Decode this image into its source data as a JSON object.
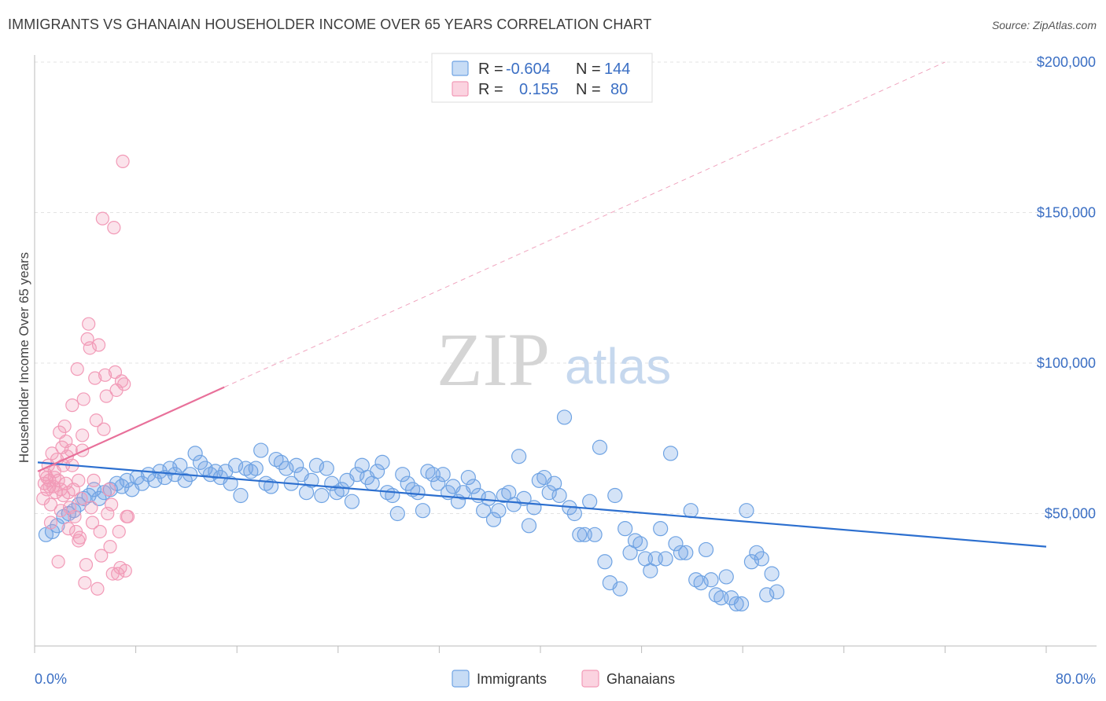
{
  "title": "IMMIGRANTS VS GHANAIAN HOUSEHOLDER INCOME OVER 65 YEARS CORRELATION CHART",
  "source": "Source: ZipAtlas.com",
  "watermark": {
    "zip": "ZIP",
    "atlas": "atlas"
  },
  "colors": {
    "immigrants": "#6fa3e3",
    "immigrants_line": "#2c6fcf",
    "ghanaians": "#f29ab7",
    "ghanaians_line": "#e8709a",
    "accent_text": "#3b6fc4"
  },
  "legend": {
    "rows": [
      {
        "r_label": "R =",
        "r_value": "-0.604",
        "n_label": "N =",
        "n_value": "144"
      },
      {
        "r_label": "R =",
        "r_value": "0.155",
        "n_label": "N =",
        "n_value": "80"
      }
    ]
  },
  "chart_data": {
    "type": "scatter",
    "xlabel": "",
    "ylabel": "Householder Income Over 65 years",
    "xlim": [
      0,
      80
    ],
    "ylim": [
      0,
      210000
    ],
    "x_tick_labels": [
      "0.0%",
      "80.0%"
    ],
    "y_ticks": [
      50000,
      100000,
      150000,
      200000
    ],
    "y_tick_labels": [
      "$50,000",
      "$100,000",
      "$150,000",
      "$200,000"
    ],
    "grid": true,
    "legend_position": "top-center",
    "series": [
      {
        "name": "Immigrants",
        "trend": {
          "x1": 0.0,
          "y1": 67000,
          "x2": 80.0,
          "y2": 39000,
          "dashed_extension": false
        },
        "points": [
          [
            0.4,
            43000
          ],
          [
            0.9,
            44000
          ],
          [
            1.3,
            46000
          ],
          [
            1.8,
            49000
          ],
          [
            2.2,
            50000
          ],
          [
            2.6,
            51000
          ],
          [
            3.0,
            53000
          ],
          [
            3.4,
            55000
          ],
          [
            3.8,
            56000
          ],
          [
            4.2,
            58000
          ],
          [
            4.6,
            55000
          ],
          [
            5.0,
            57000
          ],
          [
            5.5,
            58000
          ],
          [
            6.0,
            60000
          ],
          [
            6.4,
            59000
          ],
          [
            6.8,
            61000
          ],
          [
            7.2,
            58000
          ],
          [
            7.6,
            62000
          ],
          [
            8.0,
            60000
          ],
          [
            8.5,
            63000
          ],
          [
            9.0,
            61000
          ],
          [
            9.4,
            64000
          ],
          [
            9.8,
            62000
          ],
          [
            10.2,
            65000
          ],
          [
            10.6,
            63000
          ],
          [
            11.0,
            66000
          ],
          [
            11.4,
            61000
          ],
          [
            11.8,
            63000
          ],
          [
            12.2,
            70000
          ],
          [
            12.6,
            67000
          ],
          [
            13.0,
            65000
          ],
          [
            13.4,
            63000
          ],
          [
            13.8,
            64000
          ],
          [
            14.2,
            62000
          ],
          [
            14.6,
            64000
          ],
          [
            15.0,
            60000
          ],
          [
            15.4,
            66000
          ],
          [
            15.8,
            56000
          ],
          [
            16.2,
            65000
          ],
          [
            16.6,
            64000
          ],
          [
            17.0,
            65000
          ],
          [
            17.4,
            71000
          ],
          [
            17.8,
            60000
          ],
          [
            18.2,
            59000
          ],
          [
            18.6,
            68000
          ],
          [
            19.0,
            67000
          ],
          [
            19.4,
            65000
          ],
          [
            19.8,
            60000
          ],
          [
            20.2,
            66000
          ],
          [
            20.6,
            63000
          ],
          [
            21.0,
            57000
          ],
          [
            21.4,
            61000
          ],
          [
            21.8,
            66000
          ],
          [
            22.2,
            56000
          ],
          [
            22.6,
            65000
          ],
          [
            23.0,
            60000
          ],
          [
            23.4,
            57000
          ],
          [
            23.8,
            58000
          ],
          [
            24.2,
            61000
          ],
          [
            24.6,
            54000
          ],
          [
            25.0,
            63000
          ],
          [
            25.4,
            66000
          ],
          [
            25.8,
            62000
          ],
          [
            26.2,
            60000
          ],
          [
            26.6,
            64000
          ],
          [
            27.0,
            67000
          ],
          [
            27.4,
            57000
          ],
          [
            27.8,
            56000
          ],
          [
            28.2,
            50000
          ],
          [
            28.6,
            63000
          ],
          [
            29.0,
            60000
          ],
          [
            29.4,
            58000
          ],
          [
            29.8,
            57000
          ],
          [
            30.2,
            51000
          ],
          [
            30.6,
            64000
          ],
          [
            31.0,
            63000
          ],
          [
            31.4,
            60000
          ],
          [
            31.8,
            63000
          ],
          [
            32.2,
            57000
          ],
          [
            32.6,
            59000
          ],
          [
            33.0,
            54000
          ],
          [
            33.4,
            57000
          ],
          [
            33.8,
            62000
          ],
          [
            34.2,
            59000
          ],
          [
            34.6,
            56000
          ],
          [
            35.0,
            51000
          ],
          [
            35.4,
            55000
          ],
          [
            35.8,
            48000
          ],
          [
            36.2,
            51000
          ],
          [
            36.6,
            56000
          ],
          [
            37.0,
            57000
          ],
          [
            37.4,
            53000
          ],
          [
            37.8,
            69000
          ],
          [
            38.2,
            55000
          ],
          [
            38.6,
            46000
          ],
          [
            39.0,
            52000
          ],
          [
            39.4,
            61000
          ],
          [
            39.8,
            62000
          ],
          [
            40.2,
            57000
          ],
          [
            40.6,
            60000
          ],
          [
            41.0,
            56000
          ],
          [
            41.4,
            82000
          ],
          [
            41.8,
            52000
          ],
          [
            42.2,
            50000
          ],
          [
            42.6,
            43000
          ],
          [
            43.0,
            43000
          ],
          [
            43.4,
            54000
          ],
          [
            43.8,
            43000
          ],
          [
            44.2,
            72000
          ],
          [
            44.6,
            34000
          ],
          [
            45.0,
            27000
          ],
          [
            45.4,
            56000
          ],
          [
            45.8,
            25000
          ],
          [
            46.2,
            45000
          ],
          [
            46.6,
            37000
          ],
          [
            47.0,
            41000
          ],
          [
            47.4,
            40000
          ],
          [
            47.8,
            35000
          ],
          [
            48.2,
            31000
          ],
          [
            48.6,
            35000
          ],
          [
            49.0,
            45000
          ],
          [
            49.4,
            35000
          ],
          [
            49.8,
            70000
          ],
          [
            50.2,
            40000
          ],
          [
            50.6,
            37000
          ],
          [
            51.0,
            37000
          ],
          [
            51.4,
            51000
          ],
          [
            51.8,
            28000
          ],
          [
            52.2,
            27000
          ],
          [
            52.6,
            38000
          ],
          [
            53.0,
            28000
          ],
          [
            53.4,
            23000
          ],
          [
            53.8,
            22000
          ],
          [
            54.2,
            29000
          ],
          [
            54.6,
            22000
          ],
          [
            55.0,
            20000
          ],
          [
            55.4,
            20000
          ],
          [
            55.8,
            51000
          ],
          [
            56.2,
            34000
          ],
          [
            56.6,
            37000
          ],
          [
            57.0,
            35000
          ],
          [
            57.4,
            23000
          ],
          [
            57.8,
            30000
          ],
          [
            58.2,
            24000
          ]
        ]
      },
      {
        "name": "Ghanaians",
        "trend": {
          "x1": 0.0,
          "y1": 64000,
          "x2": 15.0,
          "y2": 92000,
          "dashed_extension": true,
          "x3": 72.0,
          "y3": 200000
        },
        "points": [
          [
            0.3,
            55000
          ],
          [
            0.4,
            60000
          ],
          [
            0.5,
            63000
          ],
          [
            0.6,
            58000
          ],
          [
            0.7,
            66000
          ],
          [
            0.8,
            61000
          ],
          [
            0.9,
            53000
          ],
          [
            1.0,
            70000
          ],
          [
            1.1,
            59000
          ],
          [
            1.2,
            64000
          ],
          [
            1.3,
            57000
          ],
          [
            1.4,
            68000
          ],
          [
            1.5,
            61000
          ],
          [
            1.6,
            77000
          ],
          [
            1.7,
            58000
          ],
          [
            1.8,
            72000
          ],
          [
            1.9,
            66000
          ],
          [
            2.0,
            79000
          ],
          [
            2.1,
            60000
          ],
          [
            2.2,
            69000
          ],
          [
            2.3,
            45000
          ],
          [
            2.4,
            52000
          ],
          [
            2.5,
            71000
          ],
          [
            2.6,
            86000
          ],
          [
            2.7,
            58000
          ],
          [
            2.8,
            49000
          ],
          [
            2.9,
            44000
          ],
          [
            3.0,
            98000
          ],
          [
            3.1,
            61000
          ],
          [
            3.2,
            42000
          ],
          [
            3.3,
            55000
          ],
          [
            3.4,
            76000
          ],
          [
            3.5,
            88000
          ],
          [
            3.6,
            27000
          ],
          [
            3.7,
            33000
          ],
          [
            3.8,
            108000
          ],
          [
            3.9,
            113000
          ],
          [
            4.0,
            105000
          ],
          [
            4.1,
            52000
          ],
          [
            4.2,
            47000
          ],
          [
            4.3,
            61000
          ],
          [
            4.4,
            95000
          ],
          [
            4.5,
            81000
          ],
          [
            4.6,
            25000
          ],
          [
            4.7,
            106000
          ],
          [
            4.8,
            44000
          ],
          [
            4.9,
            36000
          ],
          [
            5.0,
            148000
          ],
          [
            5.1,
            78000
          ],
          [
            5.2,
            96000
          ],
          [
            5.3,
            89000
          ],
          [
            5.4,
            50000
          ],
          [
            5.5,
            58000
          ],
          [
            5.6,
            39000
          ],
          [
            5.7,
            53000
          ],
          [
            5.8,
            30000
          ],
          [
            5.9,
            145000
          ],
          [
            6.0,
            97000
          ],
          [
            6.1,
            91000
          ],
          [
            6.2,
            30000
          ],
          [
            6.3,
            44000
          ],
          [
            6.4,
            32000
          ],
          [
            6.5,
            94000
          ],
          [
            6.6,
            167000
          ],
          [
            6.7,
            93000
          ],
          [
            6.8,
            31000
          ],
          [
            6.9,
            49000
          ],
          [
            7.0,
            49000
          ],
          [
            1.5,
            34000
          ],
          [
            2.1,
            74000
          ],
          [
            0.9,
            47000
          ],
          [
            1.2,
            62000
          ],
          [
            2.6,
            66000
          ],
          [
            3.1,
            41000
          ],
          [
            1.7,
            51000
          ],
          [
            0.6,
            62000
          ],
          [
            2.3,
            57000
          ],
          [
            1.9,
            56000
          ],
          [
            0.8,
            59000
          ],
          [
            3.4,
            71000
          ]
        ]
      }
    ]
  },
  "bottom_legend": [
    {
      "label": "Immigrants"
    },
    {
      "label": "Ghanaians"
    }
  ]
}
